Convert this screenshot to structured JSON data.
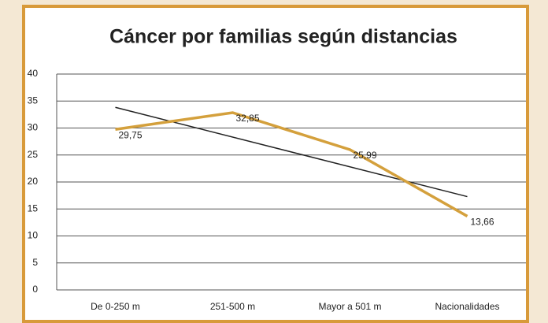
{
  "chart_data": {
    "type": "line",
    "title": "Cáncer por familias según distancias",
    "categories": [
      "De 0-250 m",
      "251-500 m",
      "Mayor a 501 m",
      "Nacionalidades"
    ],
    "series": [
      {
        "name": "Cáncer por familias",
        "color": "#d4a03c",
        "values": [
          29.75,
          32.85,
          25.99,
          13.66
        ],
        "value_labels": [
          "29,75",
          "32,85",
          "25,99",
          "13,66"
        ]
      }
    ],
    "trendline": {
      "type": "linear",
      "color": "#222222"
    },
    "ylim": [
      0,
      40
    ],
    "yticks": [
      0,
      5,
      10,
      15,
      20,
      25,
      30,
      35,
      40
    ],
    "grid": true
  }
}
